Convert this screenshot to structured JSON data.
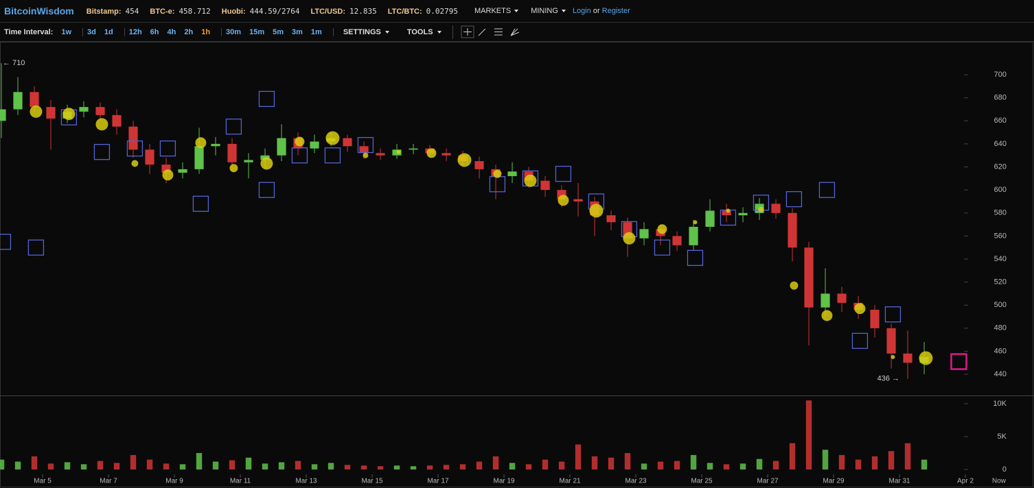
{
  "header": {
    "brand": "BitcoinWisdom",
    "tickers": [
      {
        "label": "Bitstamp:",
        "value": "454"
      },
      {
        "label": "BTC-e:",
        "value": "458.712"
      },
      {
        "label": "Huobi:",
        "value": "444.59/2764"
      },
      {
        "label": "LTC/USD:",
        "value": "12.835"
      },
      {
        "label": "LTC/BTC:",
        "value": "0.02795"
      }
    ],
    "menus": [
      "MARKETS",
      "MINING"
    ],
    "login": "Login",
    "or": "or",
    "register": "Register"
  },
  "toolbar": {
    "label": "Time Interval:",
    "interval_groups": [
      [
        "1w"
      ],
      [
        "3d",
        "1d"
      ],
      [
        "12h",
        "6h",
        "4h",
        "2h",
        "1h"
      ],
      [
        "30m",
        "15m",
        "5m",
        "3m",
        "1m"
      ]
    ],
    "active": "1h",
    "menus": [
      "SETTINGS",
      "TOOLS"
    ]
  },
  "chart_data": [
    {
      "type": "candlestick",
      "x": [
        3.75,
        4.25,
        4.75,
        5.25,
        5.75,
        6.25,
        6.75,
        7.25,
        7.75,
        8.25,
        8.75,
        9.25,
        9.75,
        10.25,
        10.75,
        11.25,
        11.75,
        12.25,
        12.75,
        13.25,
        13.75,
        14.25,
        14.75,
        15.25,
        15.75,
        16.25,
        16.75,
        17.25,
        17.75,
        18.25,
        18.75,
        19.25,
        19.75,
        20.25,
        20.75,
        21.25,
        21.75,
        22.25,
        22.75,
        23.25,
        23.75,
        24.25,
        24.75,
        25.25,
        25.75,
        26.25,
        26.75,
        27.25,
        27.75,
        28.25,
        28.75,
        29.25,
        29.75,
        30.25,
        30.75,
        31.25,
        31.75
      ],
      "open": [
        660,
        670,
        685,
        672,
        662,
        668,
        672,
        665,
        655,
        635,
        622,
        615,
        618,
        638,
        640,
        624,
        626,
        630,
        645,
        636,
        642,
        645,
        638,
        632,
        630,
        635,
        636,
        632,
        630,
        625,
        618,
        612,
        616,
        608,
        600,
        592,
        590,
        578,
        572,
        558,
        566,
        560,
        552,
        568,
        582,
        578,
        580,
        588,
        580,
        550,
        498,
        510,
        502,
        496,
        480,
        458,
        450
      ],
      "high": [
        710,
        698,
        690,
        678,
        674,
        677,
        676,
        670,
        660,
        640,
        628,
        624,
        654,
        646,
        645,
        632,
        636,
        657,
        650,
        648,
        650,
        648,
        642,
        636,
        640,
        640,
        639,
        636,
        634,
        629,
        622,
        624,
        620,
        612,
        604,
        606,
        594,
        582,
        576,
        572,
        570,
        564,
        574,
        592,
        588,
        585,
        593,
        592,
        584,
        555,
        532,
        516,
        508,
        500,
        484,
        478,
        468
      ],
      "low": [
        645,
        665,
        668,
        635,
        658,
        663,
        660,
        648,
        628,
        614,
        606,
        610,
        614,
        630,
        616,
        610,
        618,
        625,
        630,
        632,
        638,
        633,
        627,
        626,
        627,
        631,
        628,
        625,
        620,
        610,
        592,
        606,
        602,
        594,
        585,
        577,
        560,
        565,
        542,
        552,
        552,
        547,
        548,
        564,
        572,
        572,
        574,
        575,
        538,
        465,
        490,
        494,
        488,
        472,
        445,
        436,
        440
      ],
      "close": [
        670,
        685,
        672,
        662,
        668,
        672,
        665,
        655,
        635,
        622,
        615,
        618,
        638,
        640,
        624,
        626,
        630,
        645,
        636,
        642,
        645,
        638,
        632,
        630,
        635,
        636,
        632,
        630,
        625,
        618,
        612,
        616,
        608,
        600,
        592,
        590,
        578,
        572,
        558,
        566,
        560,
        552,
        568,
        582,
        578,
        580,
        588,
        580,
        550,
        498,
        510,
        502,
        496,
        480,
        458,
        450,
        455
      ],
      "up_color": "#5fc24a",
      "down_color": "#d03535",
      "xlim": [
        3.708,
        33.29
      ],
      "ylim": [
        421.6,
        728.6
      ],
      "yticks": [
        440,
        460,
        480,
        500,
        520,
        540,
        560,
        580,
        600,
        620,
        640,
        660,
        680,
        700
      ],
      "high_label": "← 710",
      "low_label": "436 →",
      "circles": {
        "color": "#d8cc10",
        "x": [
          4.8,
          5.8,
          6.8,
          7.8,
          8.8,
          9.8,
          10.8,
          11.8,
          12.8,
          13.8,
          14.8,
          15.8,
          16.8,
          17.8,
          18.8,
          19.8,
          20.8,
          21.8,
          22.8,
          23.8,
          24.8,
          25.8,
          26.8,
          27.8,
          28.8,
          29.8,
          30.8,
          31.8
        ],
        "y": [
          668,
          666,
          657,
          623,
          613,
          641,
          619,
          623,
          642,
          645,
          630,
          633,
          632,
          626,
          614,
          608,
          591,
          582,
          558,
          566,
          572,
          582,
          583,
          517,
          491,
          497,
          455,
          454
        ],
        "sizes": [
          9,
          9,
          9,
          5,
          8,
          8,
          6,
          9,
          7,
          10,
          4,
          3,
          7,
          10,
          6,
          9,
          8,
          10,
          9,
          7,
          3,
          3,
          4,
          6,
          8,
          8,
          3,
          10
        ]
      },
      "squares": {
        "color": "#5563d8",
        "x": [
          3.8,
          4.8,
          5.8,
          6.8,
          7.8,
          8.8,
          9.8,
          10.8,
          11.8,
          11.8,
          12.8,
          13.8,
          14.8,
          18.8,
          19.8,
          20.8,
          21.8,
          22.8,
          23.8,
          24.8,
          25.8,
          26.8,
          27.8,
          28.8,
          29.8,
          30.8
        ],
        "y": [
          555,
          550,
          663,
          633,
          636,
          636,
          588,
          655,
          679,
          600,
          630,
          630,
          639,
          605,
          610,
          614,
          590,
          566,
          550,
          541,
          576,
          589,
          592,
          600,
          469,
          492
        ]
      },
      "last_marker": {
        "x": 32.8,
        "y": 451,
        "color": "#e0188c"
      }
    },
    {
      "type": "bar",
      "x": [
        3.75,
        4.25,
        4.75,
        5.25,
        5.75,
        6.25,
        6.75,
        7.25,
        7.75,
        8.25,
        8.75,
        9.25,
        9.75,
        10.25,
        10.75,
        11.25,
        11.75,
        12.25,
        12.75,
        13.25,
        13.75,
        14.25,
        14.75,
        15.25,
        15.75,
        16.25,
        16.75,
        17.25,
        17.75,
        18.25,
        18.75,
        19.25,
        19.75,
        20.25,
        20.75,
        21.25,
        21.75,
        22.25,
        22.75,
        23.25,
        23.75,
        24.25,
        24.75,
        25.25,
        25.75,
        26.25,
        26.75,
        27.25,
        27.75,
        28.25,
        28.75,
        29.25,
        29.75,
        30.25,
        30.75,
        31.25,
        31.75
      ],
      "values": [
        1500,
        1200,
        2000,
        900,
        1100,
        800,
        1300,
        1000,
        2200,
        1500,
        900,
        800,
        2500,
        1200,
        1400,
        1800,
        900,
        1100,
        1300,
        800,
        1000,
        700,
        600,
        500,
        600,
        500,
        600,
        700,
        800,
        1200,
        2000,
        1000,
        800,
        1500,
        1200,
        3800,
        2000,
        1800,
        2500,
        900,
        1200,
        1300,
        2200,
        1000,
        800,
        900,
        1600,
        1300,
        4000,
        10500,
        3000,
        2200,
        1500,
        2000,
        2800,
        4000,
        1500
      ],
      "up_color": "#5fc24a",
      "down_color": "#d03535",
      "xlim": [
        3.708,
        33.29
      ],
      "ylim": [
        -729,
        11250
      ],
      "yticks": [
        0,
        {
          "value": 5000,
          "label": "5K"
        },
        {
          "value": 10000,
          "label": "10K"
        }
      ],
      "xticks": [
        {
          "value": 5,
          "label": "Mar 5"
        },
        {
          "value": 7,
          "label": "Mar 7"
        },
        {
          "value": 9,
          "label": "Mar 9"
        },
        {
          "value": 11,
          "label": "Mar 11"
        },
        {
          "value": 13,
          "label": "Mar 13"
        },
        {
          "value": 15,
          "label": "Mar 15"
        },
        {
          "value": 17,
          "label": "Mar 17"
        },
        {
          "value": 19,
          "label": "Mar 19"
        },
        {
          "value": 21,
          "label": "Mar 21"
        },
        {
          "value": 23,
          "label": "Mar 23"
        },
        {
          "value": 25,
          "label": "Mar 25"
        },
        {
          "value": 27,
          "label": "Mar 27"
        },
        {
          "value": 29,
          "label": "Mar 29"
        },
        {
          "value": 31,
          "label": "Mar 31"
        },
        {
          "value": 33,
          "label": "Apr 2"
        }
      ],
      "now_label": "Now"
    }
  ]
}
